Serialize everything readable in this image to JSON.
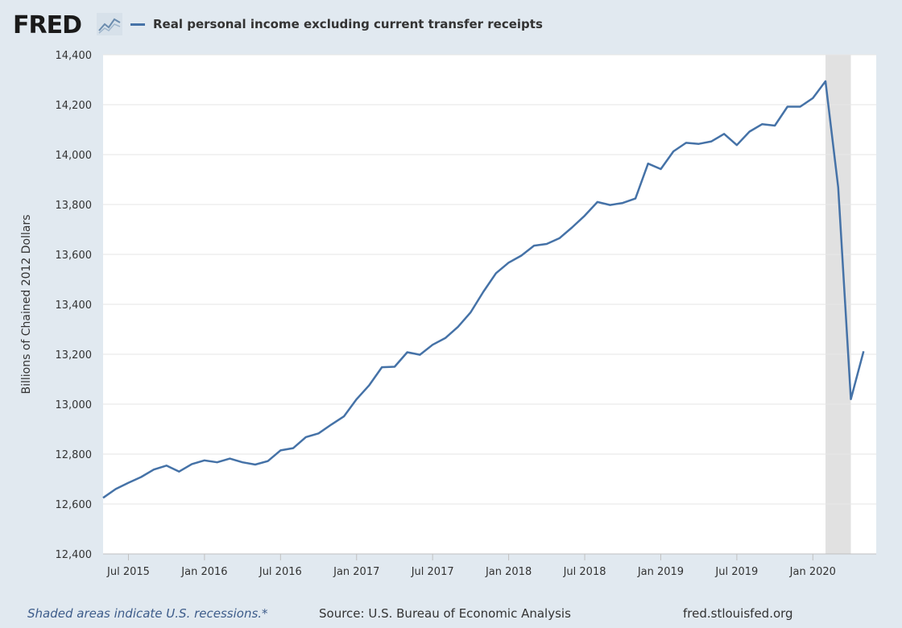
{
  "logo": {
    "text": "FRED"
  },
  "legend": {
    "series_label": "Real personal income excluding current transfer receipts",
    "color": "#4572a7"
  },
  "footer": {
    "note": "Shaded areas indicate U.S. recessions.*",
    "source": "Source: U.S. Bureau of Economic Analysis",
    "site": "fred.stlouisfed.org"
  },
  "chart_data": {
    "type": "line",
    "title": "",
    "xlabel": "",
    "ylabel": "Billions of Chained 2012 Dollars",
    "ylim": [
      12400,
      14400
    ],
    "yticks": [
      12400,
      12600,
      12800,
      13000,
      13200,
      13400,
      13600,
      13800,
      14000,
      14200,
      14400
    ],
    "ytick_labels": [
      "12,400",
      "12,600",
      "12,800",
      "13,000",
      "13,200",
      "13,400",
      "13,600",
      "13,800",
      "14,000",
      "14,200",
      "14,400"
    ],
    "xlim": [
      "2015-05",
      "2020-06"
    ],
    "xtick_labels": [
      "Jul 2015",
      "Jan 2016",
      "Jul 2016",
      "Jan 2017",
      "Jul 2017",
      "Jan 2018",
      "Jul 2018",
      "Jan 2019",
      "Jul 2019",
      "Jan 2020"
    ],
    "xtick_months": [
      "2015-07",
      "2016-01",
      "2016-07",
      "2017-01",
      "2017-07",
      "2018-01",
      "2018-07",
      "2019-01",
      "2019-07",
      "2020-01"
    ],
    "grid": true,
    "recession": {
      "start": "2020-02",
      "end": "2020-04"
    },
    "series": [
      {
        "name": "Real personal income excluding current transfer receipts",
        "color": "#4572a7",
        "x": [
          "2015-05",
          "2015-06",
          "2015-07",
          "2015-08",
          "2015-09",
          "2015-10",
          "2015-11",
          "2015-12",
          "2016-01",
          "2016-02",
          "2016-03",
          "2016-04",
          "2016-05",
          "2016-06",
          "2016-07",
          "2016-08",
          "2016-09",
          "2016-10",
          "2016-11",
          "2016-12",
          "2017-01",
          "2017-02",
          "2017-03",
          "2017-04",
          "2017-05",
          "2017-06",
          "2017-07",
          "2017-08",
          "2017-09",
          "2017-10",
          "2017-11",
          "2017-12",
          "2018-01",
          "2018-02",
          "2018-03",
          "2018-04",
          "2018-05",
          "2018-06",
          "2018-07",
          "2018-08",
          "2018-09",
          "2018-10",
          "2018-11",
          "2018-12",
          "2019-01",
          "2019-02",
          "2019-03",
          "2019-04",
          "2019-05",
          "2019-06",
          "2019-07",
          "2019-08",
          "2019-09",
          "2019-10",
          "2019-11",
          "2019-12",
          "2020-01",
          "2020-02",
          "2020-03",
          "2020-04",
          "2020-05"
        ],
        "values": [
          12625,
          12660,
          12685,
          12708,
          12738,
          12754,
          12730,
          12760,
          12775,
          12767,
          12782,
          12767,
          12758,
          12772,
          12815,
          12824,
          12868,
          12883,
          12918,
          12951,
          13020,
          13076,
          13148,
          13150,
          13208,
          13198,
          13238,
          13265,
          13310,
          13368,
          13450,
          13525,
          13567,
          13595,
          13635,
          13642,
          13665,
          13708,
          13755,
          13810,
          13798,
          13806,
          13824,
          13964,
          13942,
          14013,
          14047,
          14043,
          14053,
          14083,
          14038,
          14092,
          14122,
          14116,
          14192,
          14192,
          14226,
          14294,
          13868,
          13020,
          13212
        ]
      }
    ]
  }
}
